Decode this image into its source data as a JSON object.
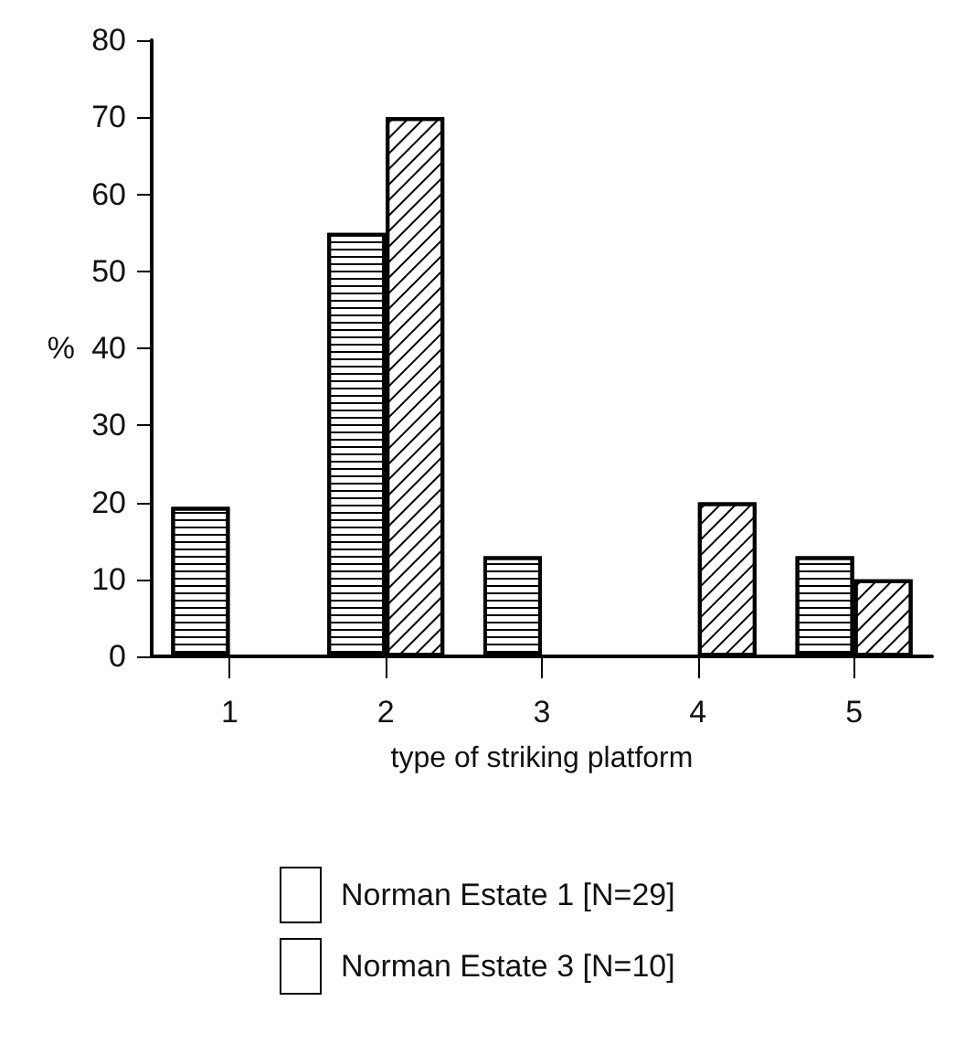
{
  "chart_data": {
    "type": "bar",
    "xlabel": "type of striking platform",
    "ylabel": "%",
    "categories": [
      "1",
      "2",
      "3",
      "4",
      "5"
    ],
    "series": [
      {
        "name": "Norman Estate 1 [N=29]",
        "color": "#ffffff",
        "values": [
          19.4,
          55,
          13,
          0,
          13
        ]
      },
      {
        "name": "Norman Estate 3 [N=10]",
        "color": "#ffffff",
        "values": [
          0,
          70,
          0,
          20,
          10
        ]
      }
    ],
    "ylim": [
      0,
      80
    ],
    "yticks": [
      0,
      10,
      20,
      30,
      40,
      50,
      60,
      70,
      80
    ],
    "grid": false,
    "legend": "bottom"
  }
}
